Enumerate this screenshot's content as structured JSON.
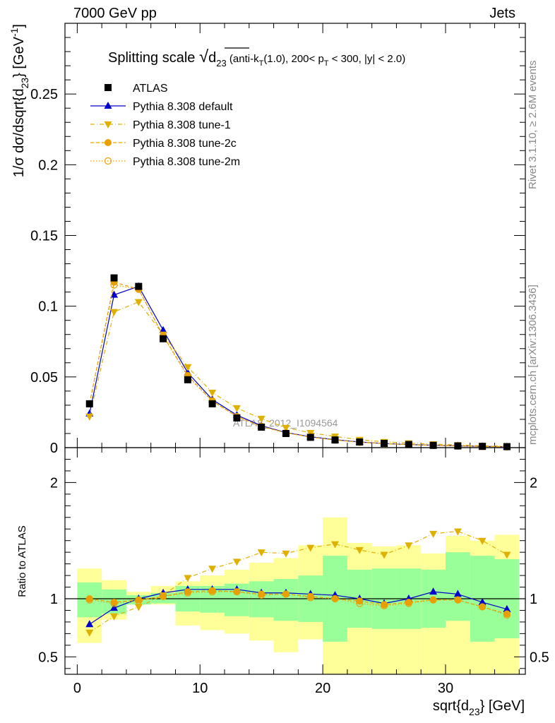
{
  "header": {
    "left": "7000 GeV pp",
    "right": "Jets"
  },
  "side_text": {
    "rivet": "Rivet 3.1.10, ≥ 2.6M events",
    "mcplots": "mcplots.cern.ch [arXiv:1306.3436]"
  },
  "watermark": "ATLAS_2012_I1094564",
  "chart_data": [
    {
      "type": "scatter",
      "title": "Splitting scale √d23 (anti-kT(1.0), 200< pT < 300, |y| < 2.0)",
      "ylabel": "1/σ dσ/dsqrt{d23} [GeV⁻¹]",
      "xlim": [
        -1,
        36.5
      ],
      "ylim": [
        0,
        0.3
      ],
      "yticks": [
        "0",
        "0.05",
        "0.1",
        "0.15",
        "0.2",
        "0.25"
      ],
      "legend_position": "top-left",
      "x": [
        1,
        3,
        5,
        7,
        9,
        11,
        13,
        15,
        17,
        19,
        21,
        23,
        25,
        27,
        29,
        31,
        33,
        35
      ],
      "series": [
        {
          "name": "ATLAS",
          "color": "#000000",
          "marker": "square",
          "values": [
            0.031,
            0.12,
            0.114,
            0.077,
            0.048,
            0.031,
            0.021,
            0.0145,
            0.01,
            0.0073,
            0.0054,
            0.004,
            0.003,
            0.0022,
            0.0016,
            0.0012,
            0.0009,
            0.0007
          ]
        },
        {
          "name": "Pythia 8.308 default",
          "color": "#0000cc",
          "marker": "triangle-up",
          "line": "solid",
          "values": [
            0.024,
            0.108,
            0.114,
            0.083,
            0.053,
            0.034,
            0.023,
            0.0155,
            0.0107,
            0.0077,
            0.0056,
            0.004,
            0.0029,
            0.0022,
            0.0017,
            0.00125,
            0.00087,
            0.00064
          ]
        },
        {
          "name": "Pythia 8.308 tune-1",
          "color": "#e0b000",
          "marker": "triangle-down",
          "line": "dashdot",
          "values": [
            0.022,
            0.096,
            0.103,
            0.08,
            0.057,
            0.039,
            0.028,
            0.0205,
            0.0141,
            0.0105,
            0.0079,
            0.0056,
            0.0041,
            0.0032,
            0.0025,
            0.0019,
            0.0013,
            0.001
          ]
        },
        {
          "name": "Pythia 8.308 tune-2c",
          "color": "#e8a000",
          "marker": "circle",
          "line": "dashed",
          "values": [
            0.031,
            0.117,
            0.112,
            0.079,
            0.051,
            0.033,
            0.022,
            0.015,
            0.0105,
            0.0075,
            0.0054,
            0.0039,
            0.0029,
            0.0021,
            0.0016,
            0.0012,
            0.0009,
            0.0006
          ]
        },
        {
          "name": "Pythia 8.308 tune-2m",
          "color": "#e8a000",
          "marker": "circle-open",
          "line": "dotted",
          "values": [
            0.031,
            0.115,
            0.112,
            0.079,
            0.05,
            0.033,
            0.022,
            0.015,
            0.0105,
            0.0074,
            0.0054,
            0.0038,
            0.0028,
            0.0021,
            0.0016,
            0.0012,
            0.0009,
            0.0006
          ]
        }
      ]
    },
    {
      "type": "scatter",
      "xlabel": "sqrt{d23} [GeV]",
      "ylabel": "Ratio to ATLAS",
      "xlim": [
        -1,
        36.5
      ],
      "ylim": [
        0.35,
        2.3
      ],
      "xticks": [
        "0",
        "10",
        "20",
        "30"
      ],
      "yticks": [
        "0.5",
        "1",
        "2"
      ],
      "x": [
        1,
        3,
        5,
        7,
        9,
        11,
        13,
        15,
        17,
        19,
        21,
        23,
        25,
        27,
        29,
        31,
        33,
        35
      ],
      "bands": {
        "stat_color": "#99ff99",
        "syst_color": "#ffff99",
        "inner": {
          "lo": [
            0.84,
            0.87,
            0.95,
            0.96,
            0.89,
            0.88,
            0.85,
            0.84,
            0.81,
            0.8,
            0.63,
            0.75,
            0.74,
            0.74,
            0.75,
            0.81,
            0.63,
            0.66
          ],
          "hi": [
            1.14,
            1.08,
            1.03,
            1.05,
            1.11,
            1.11,
            1.13,
            1.15,
            1.17,
            1.2,
            1.37,
            1.25,
            1.26,
            1.26,
            1.25,
            1.4,
            1.37,
            1.34
          ]
        },
        "outer": {
          "lo": [
            0.62,
            0.82,
            0.95,
            0.95,
            0.77,
            0.73,
            0.7,
            0.64,
            0.54,
            0.65,
            0.3,
            0.3,
            0.3,
            0.3,
            0.3,
            0.3,
            0.3,
            0.3
          ],
          "hi": [
            1.26,
            1.16,
            1.06,
            1.11,
            1.15,
            1.2,
            1.25,
            1.31,
            1.35,
            1.46,
            1.7,
            1.48,
            1.45,
            1.46,
            1.39,
            1.54,
            1.5,
            1.55
          ]
        }
      },
      "series": [
        {
          "name": "Pythia 8.308 default",
          "values": [
            0.78,
            0.92,
            1.0,
            1.05,
            1.08,
            1.08,
            1.08,
            1.05,
            1.05,
            1.04,
            1.03,
            1.0,
            0.96,
            1.0,
            1.06,
            1.04,
            0.97,
            0.91
          ]
        },
        {
          "name": "Pythia 8.308 tune-1",
          "values": [
            0.71,
            0.85,
            0.93,
            1.03,
            1.18,
            1.26,
            1.32,
            1.4,
            1.39,
            1.44,
            1.47,
            1.42,
            1.38,
            1.46,
            1.56,
            1.58,
            1.5,
            1.38
          ]
        },
        {
          "name": "Pythia 8.308 tune-2c",
          "values": [
            1.0,
            0.97,
            0.99,
            1.02,
            1.06,
            1.07,
            1.06,
            1.04,
            1.04,
            1.02,
            1.0,
            0.98,
            0.95,
            0.97,
            0.99,
            0.99,
            0.93,
            0.87
          ]
        },
        {
          "name": "Pythia 8.308 tune-2m",
          "values": [
            0.99,
            0.96,
            0.98,
            1.02,
            1.05,
            1.06,
            1.06,
            1.03,
            1.04,
            1.01,
            1.0,
            0.96,
            0.94,
            0.96,
            0.99,
            0.99,
            0.93,
            0.86
          ]
        }
      ]
    }
  ]
}
